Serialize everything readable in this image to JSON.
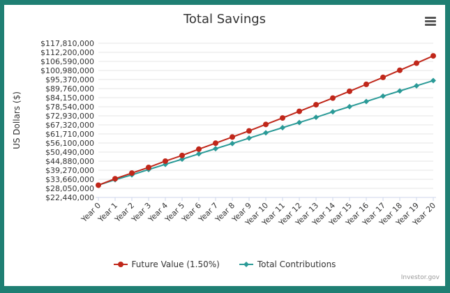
{
  "chart_data": {
    "type": "line",
    "title": "Total Savings",
    "ylabel": "US Dollars ($)",
    "xlabel": "",
    "categories": [
      "Year 0",
      "Year 1",
      "Year 2",
      "Year 3",
      "Year 4",
      "Year 5",
      "Year 6",
      "Year 7",
      "Year 8",
      "Year 9",
      "Year 10",
      "Year 11",
      "Year 12",
      "Year 13",
      "Year 14",
      "Year 15",
      "Year 16",
      "Year 17",
      "Year 18",
      "Year 19",
      "Year 20"
    ],
    "yticks": [
      "$117,810,000",
      "$112,200,000",
      "$106,590,000",
      "$100,980,000",
      "$95,370,000",
      "$89,760,000",
      "$84,150,000",
      "$78,540,000",
      "$72,930,000",
      "$67,320,000",
      "$61,710,000",
      "$56,100,000",
      "$50,490,000",
      "$44,880,000",
      "$39,270,000",
      "$33,660,000",
      "$28,050,000",
      "$22,440,000"
    ],
    "ylim": [
      22440000,
      117810000
    ],
    "grid": true,
    "legend_position": "bottom",
    "series": [
      {
        "name": "Future Value (1.50%)",
        "color": "#c0271a",
        "marker": "circle",
        "values": [
          30000000,
          34000000,
          37500000,
          41000000,
          44900000,
          48400000,
          52300000,
          56000000,
          59800000,
          63600000,
          67600000,
          71600000,
          75700000,
          79800000,
          83900000,
          88100000,
          92400000,
          96700000,
          101100000,
          105500000,
          110000000
        ]
      },
      {
        "name": "Total Contributions",
        "color": "#2a9a97",
        "marker": "diamond",
        "values": [
          30000000,
          33400000,
          36400000,
          39700000,
          42900000,
          46100000,
          49400000,
          52600000,
          55800000,
          59100000,
          62400000,
          65600000,
          68800000,
          72000000,
          75400000,
          78600000,
          81800000,
          85100000,
          88300000,
          91500000,
          94700000
        ]
      }
    ]
  },
  "credit": "Investor.gov",
  "menu_icon": "hamburger-menu-icon"
}
